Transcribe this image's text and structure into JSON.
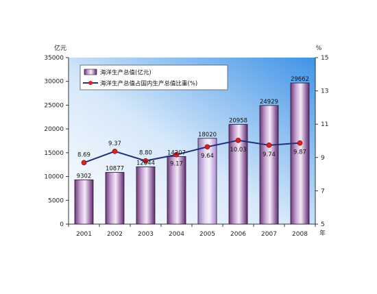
{
  "chart_data": {
    "type": "bar",
    "categories": [
      "2001",
      "2002",
      "2003",
      "2004",
      "2005",
      "2006",
      "2007",
      "2008"
    ],
    "left_axis_unit": "亿元",
    "right_axis_unit": "%",
    "x_axis_unit": "年",
    "left_axis": {
      "ylim": [
        0,
        35000
      ],
      "ticks": [
        0,
        5000,
        10000,
        15000,
        20000,
        25000,
        30000,
        35000
      ]
    },
    "right_axis": {
      "ylim": [
        5,
        15
      ],
      "ticks": [
        5,
        7,
        9,
        11,
        13,
        15
      ]
    },
    "legend_position": "top-left",
    "grid": false,
    "series": [
      {
        "name": "海洋生产总值(亿元)",
        "kind": "bar",
        "axis": "left",
        "values": [
          9302,
          10877,
          12044,
          14207,
          18020,
          20958,
          24929,
          29662
        ],
        "labels": [
          "9302",
          "10877",
          "12044",
          "14207",
          "18020",
          "20958",
          "24929",
          "29662"
        ],
        "color": "#8e5f9a"
      },
      {
        "name": "海洋生产总值占国内生产总值比重(%)",
        "kind": "line",
        "axis": "right",
        "values": [
          8.69,
          9.37,
          8.8,
          9.17,
          9.64,
          10.03,
          9.74,
          9.87
        ],
        "labels": [
          "8.69",
          "9.37",
          "8.80",
          "9.17",
          "9.64",
          "10.03",
          "9.74",
          "9.87"
        ],
        "line_color": "#1f2f7a",
        "marker_color": "#e02020"
      }
    ],
    "plot_background": [
      "#ffffff",
      "#3f93e6"
    ]
  }
}
